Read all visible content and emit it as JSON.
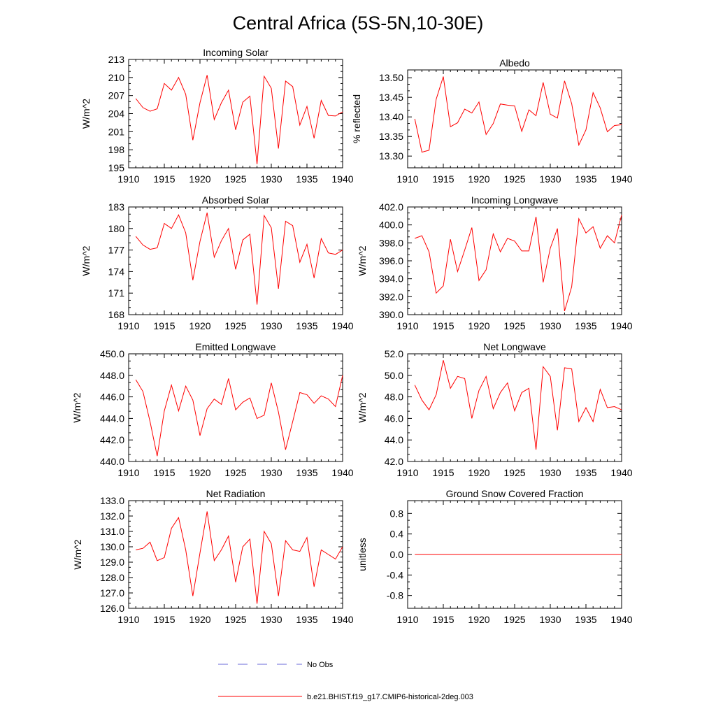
{
  "figure_title": "Central Africa (5S-5N,10-30E)",
  "legend": [
    {
      "label": "No Obs",
      "color": "#6a6ad8",
      "dash": true
    },
    {
      "label": "b.e21.BHIST.f19_g17.CMIP6-historical-2deg.003",
      "color": "#ff0000",
      "dash": false
    }
  ],
  "chart_data": [
    {
      "type": "line",
      "title": "Incoming Solar",
      "xlabel": "",
      "ylabel": "W/m^2",
      "xlim": [
        1910,
        1940
      ],
      "ylim": [
        195,
        213
      ],
      "xticks": [
        1910,
        1915,
        1920,
        1925,
        1930,
        1935,
        1940
      ],
      "yticks": [
        "195",
        "198",
        "201",
        "204",
        "207",
        "210",
        "213"
      ],
      "series": [
        {
          "color": "#ff0000",
          "x": [
            1911,
            1912,
            1913,
            1914,
            1915,
            1916,
            1917,
            1918,
            1919,
            1920,
            1921,
            1922,
            1923,
            1924,
            1925,
            1926,
            1927,
            1928,
            1929,
            1930,
            1931,
            1932,
            1933,
            1934,
            1935,
            1936,
            1937,
            1938,
            1939,
            1940
          ],
          "values": [
            206.5,
            205.0,
            204.4,
            204.8,
            209.0,
            207.9,
            210.0,
            207.2,
            199.6,
            205.8,
            210.4,
            203.0,
            205.8,
            207.9,
            201.3,
            205.9,
            206.9,
            195.6,
            210.2,
            208.2,
            198.2,
            209.4,
            208.5,
            202.1,
            205.2,
            199.9,
            206.2,
            203.7,
            203.6,
            204.3
          ]
        }
      ]
    },
    {
      "type": "line",
      "title": "Albedo",
      "xlabel": "",
      "ylabel": "% reflected",
      "xlim": [
        1910,
        1940
      ],
      "ylim": [
        13.27,
        13.52
      ],
      "xticks": [
        1910,
        1915,
        1920,
        1925,
        1930,
        1935,
        1940
      ],
      "yticks": [
        "13.30",
        "13.35",
        "13.40",
        "13.45",
        "13.50"
      ],
      "series": [
        {
          "color": "#ff0000",
          "x": [
            1911,
            1912,
            1913,
            1914,
            1915,
            1916,
            1917,
            1918,
            1919,
            1920,
            1921,
            1922,
            1923,
            1924,
            1925,
            1926,
            1927,
            1928,
            1929,
            1930,
            1931,
            1932,
            1933,
            1934,
            1935,
            1936,
            1937,
            1938,
            1939,
            1940
          ],
          "values": [
            13.395,
            13.31,
            13.315,
            13.445,
            13.503,
            13.375,
            13.385,
            13.42,
            13.41,
            13.438,
            13.355,
            13.383,
            13.433,
            13.43,
            13.428,
            13.363,
            13.418,
            13.403,
            13.488,
            13.407,
            13.397,
            13.492,
            13.434,
            13.328,
            13.367,
            13.462,
            13.423,
            13.362,
            13.378,
            13.38
          ]
        }
      ]
    },
    {
      "type": "line",
      "title": "Absorbed Solar",
      "xlabel": "",
      "ylabel": "W/m^2",
      "xlim": [
        1910,
        1940
      ],
      "ylim": [
        168,
        183
      ],
      "xticks": [
        1910,
        1915,
        1920,
        1925,
        1930,
        1935,
        1940
      ],
      "yticks": [
        "168",
        "171",
        "174",
        "177",
        "180",
        "183"
      ],
      "series": [
        {
          "color": "#ff0000",
          "x": [
            1911,
            1912,
            1913,
            1914,
            1915,
            1916,
            1917,
            1918,
            1919,
            1920,
            1921,
            1922,
            1923,
            1924,
            1925,
            1926,
            1927,
            1928,
            1929,
            1930,
            1931,
            1932,
            1933,
            1934,
            1935,
            1936,
            1937,
            1938,
            1939,
            1940
          ],
          "values": [
            178.9,
            177.7,
            177.1,
            177.3,
            180.7,
            180.0,
            181.9,
            179.4,
            172.8,
            178.2,
            182.2,
            176.0,
            178.3,
            180.0,
            174.3,
            178.4,
            179.2,
            169.4,
            181.8,
            180.1,
            171.6,
            181.0,
            180.4,
            175.3,
            177.8,
            173.1,
            178.6,
            176.6,
            176.4,
            177.0
          ]
        }
      ]
    },
    {
      "type": "line",
      "title": "Incoming Longwave",
      "xlabel": "",
      "ylabel": "W/m^2",
      "xlim": [
        1910,
        1940
      ],
      "ylim": [
        390,
        402
      ],
      "xticks": [
        1910,
        1915,
        1920,
        1925,
        1930,
        1935,
        1940
      ],
      "yticks": [
        "390.0",
        "392.0",
        "394.0",
        "396.0",
        "398.0",
        "400.0",
        "402.0"
      ],
      "series": [
        {
          "color": "#ff0000",
          "x": [
            1911,
            1912,
            1913,
            1914,
            1915,
            1916,
            1917,
            1918,
            1919,
            1920,
            1921,
            1922,
            1923,
            1924,
            1925,
            1926,
            1927,
            1928,
            1929,
            1930,
            1931,
            1932,
            1933,
            1934,
            1935,
            1936,
            1937,
            1938,
            1939,
            1940
          ],
          "values": [
            398.5,
            398.8,
            397.0,
            392.4,
            393.2,
            398.4,
            394.8,
            397.2,
            399.7,
            393.8,
            395.0,
            399.0,
            397.0,
            398.5,
            398.2,
            397.1,
            397.1,
            400.9,
            393.6,
            397.4,
            399.6,
            390.4,
            393.1,
            400.7,
            399.1,
            399.8,
            397.4,
            398.8,
            398.0,
            401.1
          ]
        }
      ]
    },
    {
      "type": "line",
      "title": "Emitted Longwave",
      "xlabel": "",
      "ylabel": "W/m^2",
      "xlim": [
        1910,
        1940
      ],
      "ylim": [
        440,
        450
      ],
      "xticks": [
        1910,
        1915,
        1920,
        1925,
        1930,
        1935,
        1940
      ],
      "yticks": [
        "440.0",
        "442.0",
        "444.0",
        "446.0",
        "448.0",
        "450.0"
      ],
      "series": [
        {
          "color": "#ff0000",
          "x": [
            1911,
            1912,
            1913,
            1914,
            1915,
            1916,
            1917,
            1918,
            1919,
            1920,
            1921,
            1922,
            1923,
            1924,
            1925,
            1926,
            1927,
            1928,
            1929,
            1930,
            1931,
            1932,
            1933,
            1934,
            1935,
            1936,
            1937,
            1938,
            1939,
            1940
          ],
          "values": [
            447.6,
            446.5,
            443.7,
            440.5,
            444.7,
            447.1,
            444.7,
            447.0,
            445.7,
            442.4,
            444.9,
            445.8,
            445.3,
            447.7,
            444.8,
            445.5,
            445.9,
            444.0,
            444.3,
            447.3,
            444.6,
            441.1,
            443.7,
            446.4,
            446.2,
            445.4,
            446.1,
            445.8,
            445.1,
            448.0
          ]
        }
      ]
    },
    {
      "type": "line",
      "title": "Net Longwave",
      "xlabel": "",
      "ylabel": "W/m^2",
      "xlim": [
        1910,
        1940
      ],
      "ylim": [
        42,
        52
      ],
      "xticks": [
        1910,
        1915,
        1920,
        1925,
        1930,
        1935,
        1940
      ],
      "yticks": [
        "42.0",
        "44.0",
        "46.0",
        "48.0",
        "50.0",
        "52.0"
      ],
      "series": [
        {
          "color": "#ff0000",
          "x": [
            1911,
            1912,
            1913,
            1914,
            1915,
            1916,
            1917,
            1918,
            1919,
            1920,
            1921,
            1922,
            1923,
            1924,
            1925,
            1926,
            1927,
            1928,
            1929,
            1930,
            1931,
            1932,
            1933,
            1934,
            1935,
            1936,
            1937,
            1938,
            1939,
            1940
          ],
          "values": [
            49.1,
            47.7,
            46.8,
            48.2,
            51.4,
            48.8,
            49.9,
            49.7,
            46.0,
            48.6,
            49.9,
            46.9,
            48.4,
            49.3,
            46.7,
            48.4,
            48.8,
            43.1,
            50.8,
            49.9,
            44.9,
            50.7,
            50.6,
            45.7,
            47.0,
            45.7,
            48.7,
            47.0,
            47.1,
            46.8
          ]
        }
      ]
    },
    {
      "type": "line",
      "title": "Net Radiation",
      "xlabel": "",
      "ylabel": "W/m^2",
      "xlim": [
        1910,
        1940
      ],
      "ylim": [
        126,
        133
      ],
      "xticks": [
        1910,
        1915,
        1920,
        1925,
        1930,
        1935,
        1940
      ],
      "yticks": [
        "126.0",
        "127.0",
        "128.0",
        "129.0",
        "130.0",
        "131.0",
        "132.0",
        "133.0"
      ],
      "series": [
        {
          "color": "#ff0000",
          "x": [
            1911,
            1912,
            1913,
            1914,
            1915,
            1916,
            1917,
            1918,
            1919,
            1920,
            1921,
            1922,
            1923,
            1924,
            1925,
            1926,
            1927,
            1928,
            1929,
            1930,
            1931,
            1932,
            1933,
            1934,
            1935,
            1936,
            1937,
            1938,
            1939,
            1940
          ],
          "values": [
            129.8,
            129.9,
            130.3,
            129.1,
            129.3,
            131.2,
            131.9,
            129.8,
            126.8,
            129.6,
            132.3,
            129.1,
            129.8,
            130.7,
            127.7,
            130.0,
            130.5,
            126.3,
            131.0,
            130.2,
            126.8,
            130.4,
            129.8,
            129.7,
            130.6,
            127.4,
            129.8,
            129.5,
            129.2,
            130.0
          ]
        }
      ]
    },
    {
      "type": "line",
      "title": "Ground Snow Covered Fraction",
      "xlabel": "",
      "ylabel": "unitless",
      "xlim": [
        1910,
        1940
      ],
      "ylim": [
        -1.05,
        1.05
      ],
      "xticks": [
        1910,
        1915,
        1920,
        1925,
        1930,
        1935,
        1940
      ],
      "yticks": [
        "-0.8",
        "-0.4",
        "0.0",
        "0.4",
        "0.8"
      ],
      "series": [
        {
          "color": "#ff0000",
          "x": [
            1911,
            1940
          ],
          "values": [
            0.0,
            0.0
          ]
        }
      ]
    }
  ]
}
